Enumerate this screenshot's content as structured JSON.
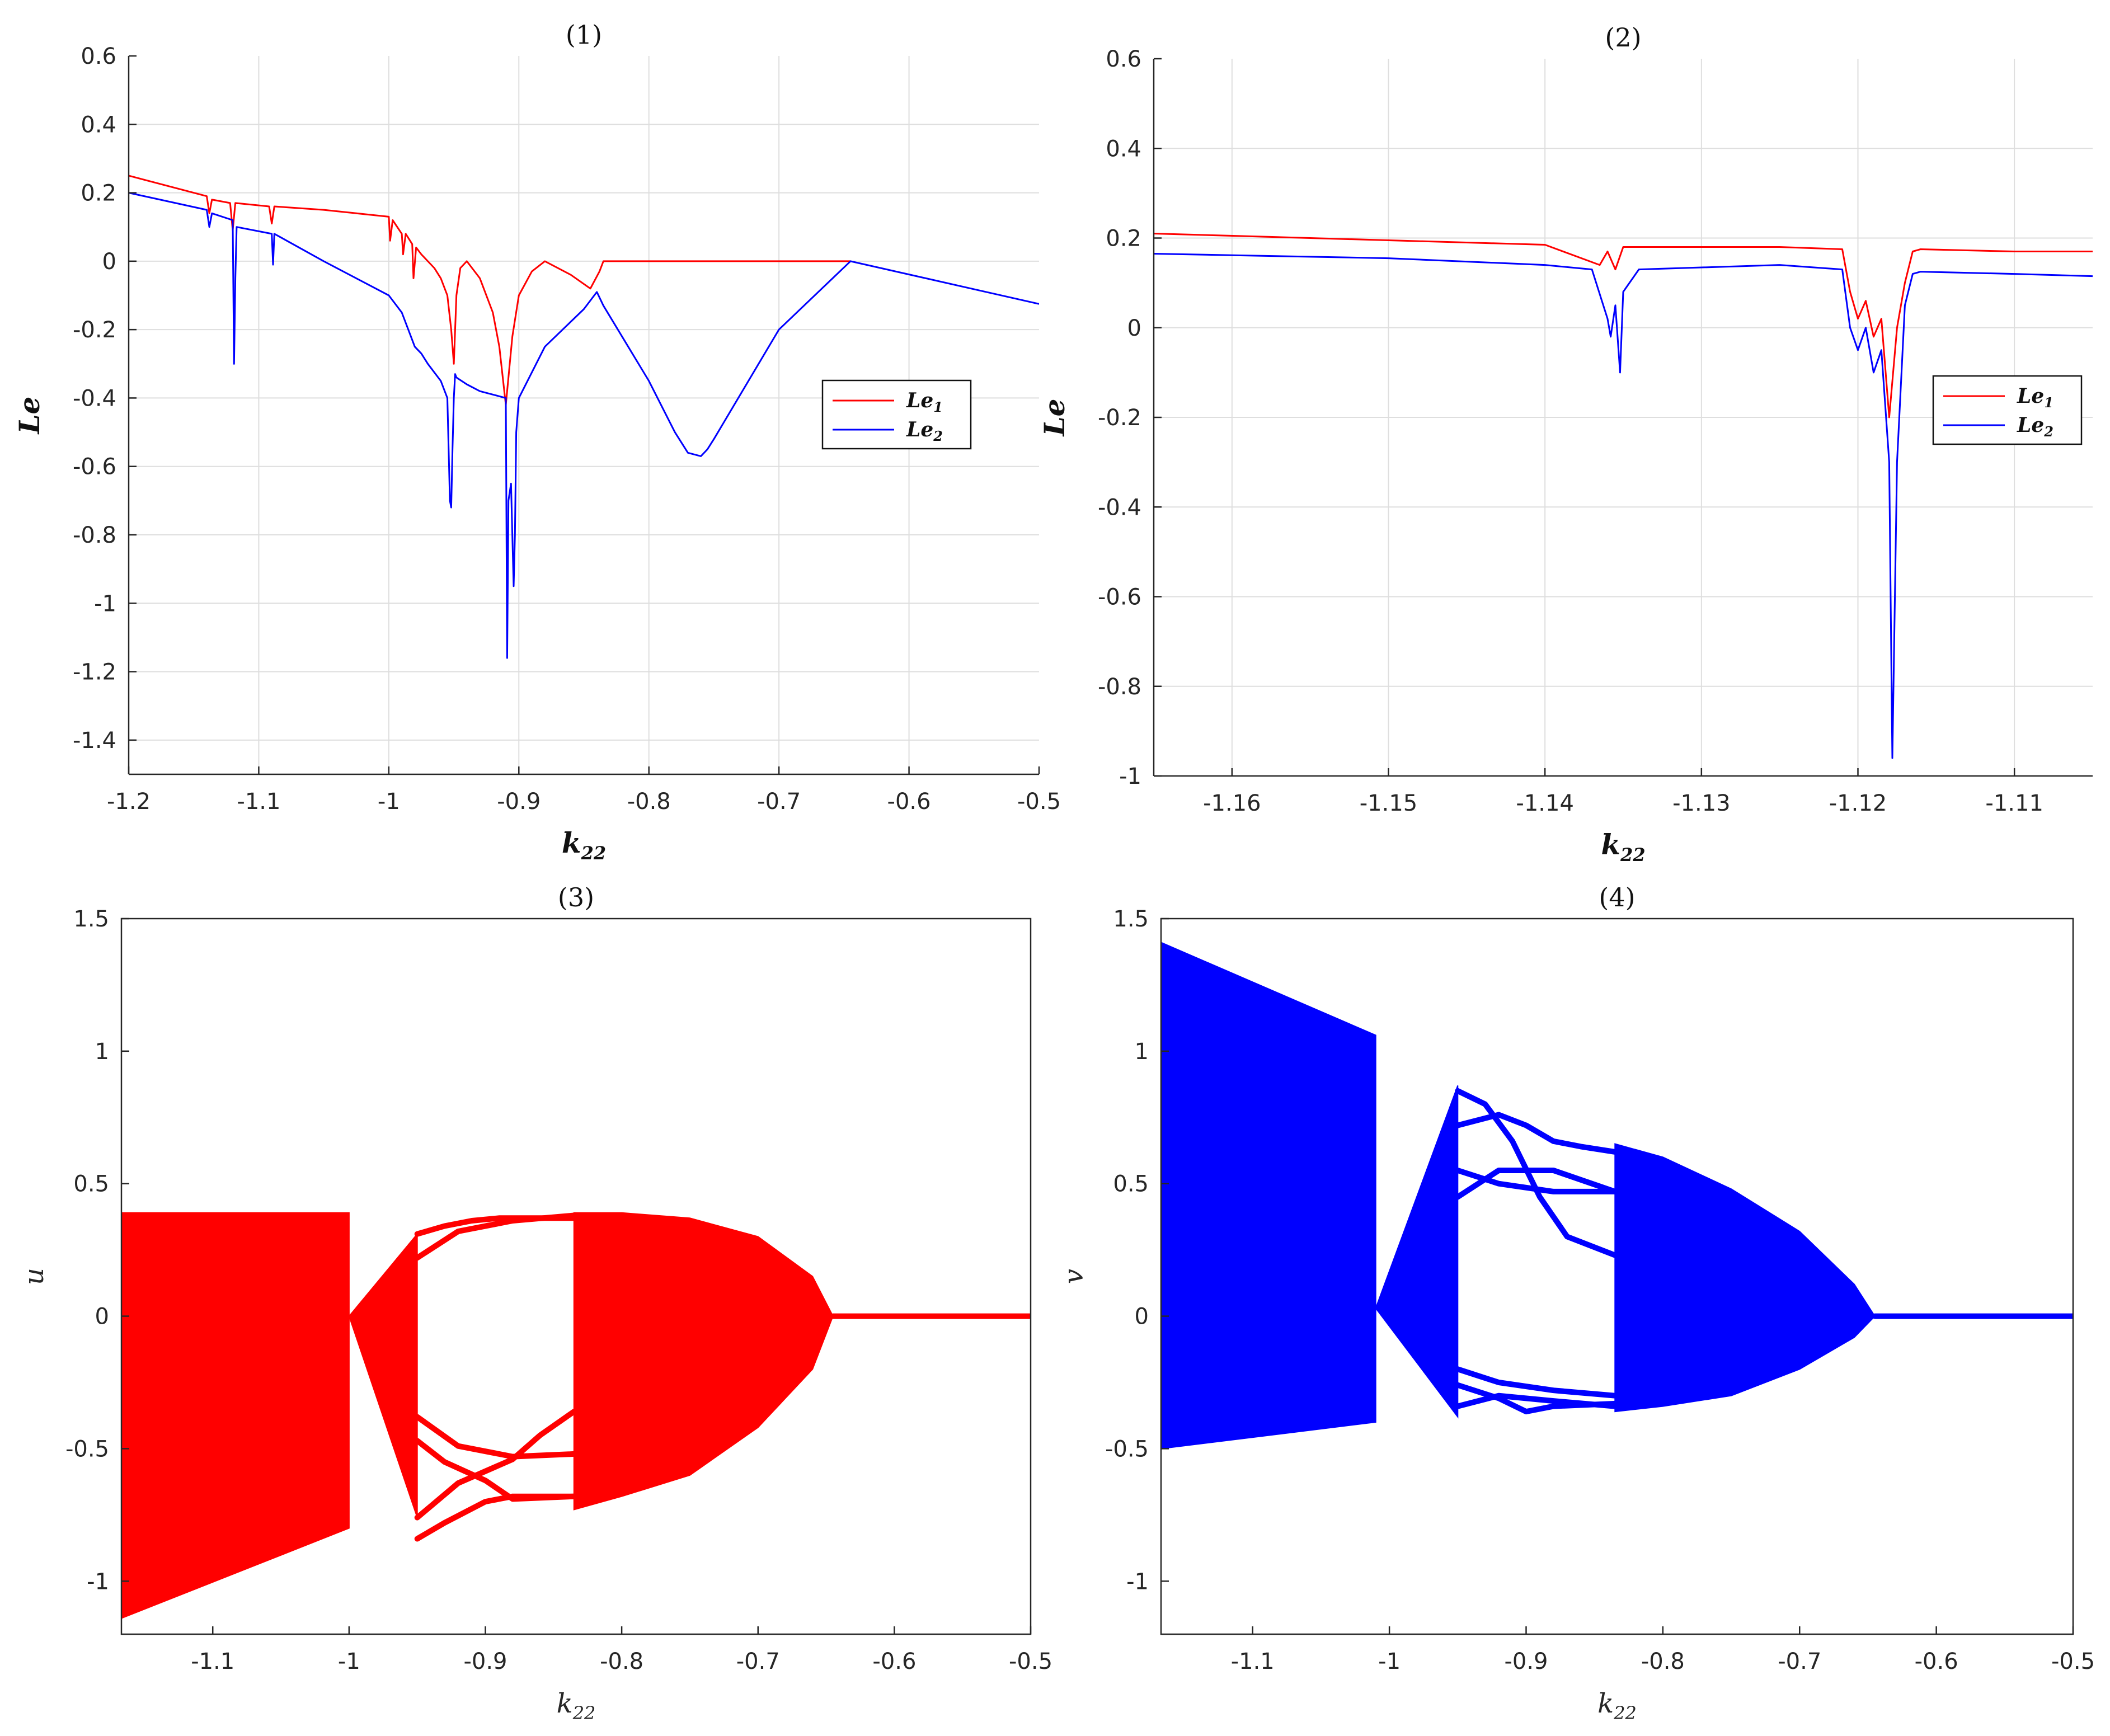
{
  "colors": {
    "red": "#ff0000",
    "blue": "#0000ff"
  },
  "chart_data": [
    {
      "type": "line",
      "title": "(1)",
      "xlabel_base": "k",
      "xlabel_sub": "22",
      "ylabel": "Le",
      "xlim": [
        -1.2,
        -0.5
      ],
      "ylim": [
        -1.5,
        0.6
      ],
      "xticks": [
        -1.2,
        -1.1,
        -1,
        -0.9,
        -0.8,
        -0.7,
        -0.6,
        -0.5
      ],
      "xtick_labels": [
        "-1.2",
        "-1.1",
        "-1",
        "-0.9",
        "-0.8",
        "-0.7",
        "-0.6",
        "-0.5"
      ],
      "yticks": [
        -1.4,
        -1.2,
        -1,
        -0.8,
        -0.6,
        -0.4,
        -0.2,
        0,
        0.2,
        0.4,
        0.6
      ],
      "ytick_labels": [
        "-1.4",
        "-1.2",
        "-1",
        "-0.8",
        "-0.6",
        "-0.4",
        "-0.2",
        "0",
        "0.2",
        "0.4",
        "0.6"
      ],
      "grid": true,
      "legend": "right",
      "series": [
        {
          "name_base": "Le",
          "name_sub": "1",
          "color": "red",
          "x": [
            -1.2,
            -1.14,
            -1.138,
            -1.136,
            -1.122,
            -1.12,
            -1.118,
            -1.092,
            -1.09,
            -1.088,
            -1.05,
            -1.0,
            -0.999,
            -0.997,
            -0.99,
            -0.989,
            -0.987,
            -0.982,
            -0.981,
            -0.979,
            -0.975,
            -0.97,
            -0.965,
            -0.96,
            -0.955,
            -0.952,
            -0.95,
            -0.948,
            -0.945,
            -0.94,
            -0.93,
            -0.92,
            -0.915,
            -0.91,
            -0.905,
            -0.9,
            -0.89,
            -0.88,
            -0.86,
            -0.845,
            -0.838,
            -0.835,
            -0.8,
            -0.75,
            -0.7,
            -0.645
          ],
          "y": [
            0.25,
            0.19,
            0.14,
            0.18,
            0.17,
            0.09,
            0.17,
            0.16,
            0.11,
            0.16,
            0.15,
            0.13,
            0.06,
            0.12,
            0.08,
            0.02,
            0.08,
            0.05,
            -0.05,
            0.04,
            0.02,
            0.0,
            -0.02,
            -0.05,
            -0.1,
            -0.2,
            -0.3,
            -0.1,
            -0.02,
            0.0,
            -0.05,
            -0.15,
            -0.25,
            -0.42,
            -0.22,
            -0.1,
            -0.03,
            0.0,
            -0.04,
            -0.08,
            -0.03,
            0.0,
            0.0,
            0.0,
            0.0,
            0.0
          ]
        },
        {
          "name_base": "Le",
          "name_sub": "2",
          "color": "blue",
          "x": [
            -1.2,
            -1.14,
            -1.138,
            -1.136,
            -1.12,
            -1.119,
            -1.118,
            -1.117,
            -1.09,
            -1.089,
            -1.088,
            -1.05,
            -1.0,
            -0.99,
            -0.985,
            -0.98,
            -0.975,
            -0.97,
            -0.96,
            -0.955,
            -0.953,
            -0.952,
            -0.951,
            -0.95,
            -0.949,
            -0.948,
            -0.94,
            -0.93,
            -0.91,
            -0.909,
            -0.908,
            -0.906,
            -0.904,
            -0.903,
            -0.902,
            -0.9,
            -0.88,
            -0.85,
            -0.84,
            -0.835,
            -0.8,
            -0.78,
            -0.77,
            -0.76,
            -0.755,
            -0.75,
            -0.7,
            -0.645,
            -0.5
          ],
          "y": [
            0.2,
            0.15,
            0.1,
            0.14,
            0.12,
            -0.3,
            -0.05,
            0.1,
            0.08,
            -0.01,
            0.08,
            0.0,
            -0.1,
            -0.15,
            -0.2,
            -0.25,
            -0.27,
            -0.3,
            -0.35,
            -0.4,
            -0.7,
            -0.72,
            -0.55,
            -0.4,
            -0.33,
            -0.34,
            -0.36,
            -0.38,
            -0.4,
            -1.16,
            -0.7,
            -0.65,
            -0.95,
            -0.8,
            -0.5,
            -0.4,
            -0.25,
            -0.14,
            -0.09,
            -0.13,
            -0.35,
            -0.5,
            -0.56,
            -0.57,
            -0.55,
            -0.52,
            -0.2,
            0.0,
            -0.125
          ]
        }
      ]
    },
    {
      "type": "line",
      "title": "(2)",
      "xlabel_base": "k",
      "xlabel_sub": "22",
      "ylabel": "Le",
      "xlim": [
        -1.165,
        -1.105
      ],
      "ylim": [
        -1.0,
        0.6
      ],
      "xticks": [
        -1.16,
        -1.15,
        -1.14,
        -1.13,
        -1.12,
        -1.11
      ],
      "xtick_labels": [
        "-1.16",
        "-1.15",
        "-1.14",
        "-1.13",
        "-1.12",
        "-1.11"
      ],
      "yticks": [
        -1,
        -0.8,
        -0.6,
        -0.4,
        -0.2,
        0,
        0.2,
        0.4,
        0.6
      ],
      "ytick_labels": [
        "-1",
        "-0.8",
        "-0.6",
        "-0.4",
        "-0.2",
        "0",
        "0.2",
        "0.4",
        "0.6"
      ],
      "grid": true,
      "legend": "right",
      "series": [
        {
          "name_base": "Le",
          "name_sub": "1",
          "color": "red",
          "x": [
            -1.165,
            -1.15,
            -1.14,
            -1.1365,
            -1.136,
            -1.1355,
            -1.135,
            -1.125,
            -1.121,
            -1.1205,
            -1.12,
            -1.1195,
            -1.119,
            -1.1185,
            -1.118,
            -1.1175,
            -1.117,
            -1.1165,
            -1.116,
            -1.11,
            -1.105
          ],
          "y": [
            0.21,
            0.195,
            0.185,
            0.14,
            0.17,
            0.13,
            0.18,
            0.18,
            0.175,
            0.08,
            0.02,
            0.06,
            -0.02,
            0.02,
            -0.2,
            0.0,
            0.1,
            0.17,
            0.175,
            0.17,
            0.17
          ]
        },
        {
          "name_base": "Le",
          "name_sub": "2",
          "color": "blue",
          "x": [
            -1.165,
            -1.15,
            -1.14,
            -1.137,
            -1.136,
            -1.1358,
            -1.1355,
            -1.1352,
            -1.135,
            -1.134,
            -1.125,
            -1.121,
            -1.1205,
            -1.12,
            -1.1195,
            -1.119,
            -1.1185,
            -1.118,
            -1.1178,
            -1.1175,
            -1.117,
            -1.1165,
            -1.116,
            -1.11,
            -1.105
          ],
          "y": [
            0.165,
            0.155,
            0.14,
            0.13,
            0.02,
            -0.02,
            0.05,
            -0.1,
            0.08,
            0.13,
            0.14,
            0.13,
            0.0,
            -0.05,
            0.0,
            -0.1,
            -0.05,
            -0.3,
            -0.96,
            -0.3,
            0.05,
            0.12,
            0.125,
            0.12,
            0.115
          ]
        }
      ]
    },
    {
      "type": "scatter",
      "title": "(3)",
      "xlabel_base": "k",
      "xlabel_sub": "22",
      "ylabel": "u",
      "color": "red",
      "xlim": [
        -1.167,
        -0.5
      ],
      "ylim": [
        -1.2,
        1.5
      ],
      "xticks": [
        -1.1,
        -1,
        -0.9,
        -0.8,
        -0.7,
        -0.6,
        -0.5
      ],
      "xtick_labels": [
        "-1.1",
        "-1",
        "-0.9",
        "-0.8",
        "-0.7",
        "-0.6",
        "-0.5"
      ],
      "yticks": [
        -1,
        -0.5,
        0,
        0.5,
        1,
        1.5
      ],
      "ytick_labels": [
        "-1",
        "-0.5",
        "0",
        "0.5",
        "1",
        "1.5"
      ],
      "grid": false,
      "regions": [
        {
          "x": [
            -1.167,
            -1.0
          ],
          "upper": [
            0.39,
            0.39
          ],
          "lower": [
            -1.14,
            -0.8
          ]
        },
        {
          "x": [
            -1.0,
            -0.95
          ],
          "upper": [
            0.0,
            0.31
          ],
          "lower": [
            0.0,
            -0.76
          ]
        },
        {
          "x": [
            -0.835,
            -0.8,
            -0.75,
            -0.7,
            -0.66,
            -0.645
          ],
          "upper": [
            0.39,
            0.39,
            0.37,
            0.3,
            0.15,
            0.0
          ],
          "lower": [
            -0.73,
            -0.68,
            -0.6,
            -0.42,
            -0.2,
            0.0
          ]
        }
      ],
      "branches": [
        {
          "x": [
            -0.95,
            -0.93,
            -0.91,
            -0.89,
            -0.87,
            -0.835
          ],
          "y": [
            0.31,
            0.34,
            0.36,
            0.37,
            0.37,
            0.37
          ]
        },
        {
          "x": [
            -0.95,
            -0.92,
            -0.88,
            -0.835
          ],
          "y": [
            0.22,
            0.32,
            0.36,
            0.38
          ]
        },
        {
          "x": [
            -0.95,
            -0.92,
            -0.88,
            -0.835
          ],
          "y": [
            -0.38,
            -0.49,
            -0.53,
            -0.52
          ]
        },
        {
          "x": [
            -0.95,
            -0.92,
            -0.88,
            -0.86,
            -0.835
          ],
          "y": [
            -0.76,
            -0.63,
            -0.54,
            -0.45,
            -0.36
          ]
        },
        {
          "x": [
            -0.95,
            -0.93,
            -0.9,
            -0.88,
            -0.835
          ],
          "y": [
            -0.47,
            -0.55,
            -0.62,
            -0.69,
            -0.68
          ]
        },
        {
          "x": [
            -0.95,
            -0.93,
            -0.9,
            -0.88,
            -0.835
          ],
          "y": [
            -0.84,
            -0.78,
            -0.7,
            -0.68,
            -0.68
          ]
        },
        {
          "x": [
            -0.645,
            -0.5
          ],
          "y": [
            0.0,
            0.0
          ]
        }
      ]
    },
    {
      "type": "scatter",
      "title": "(4)",
      "xlabel_base": "k",
      "xlabel_sub": "22",
      "ylabel": "v",
      "color": "blue",
      "xlim": [
        -1.167,
        -0.5
      ],
      "ylim": [
        -1.2,
        1.5
      ],
      "xticks": [
        -1.1,
        -1,
        -0.9,
        -0.8,
        -0.7,
        -0.6,
        -0.5
      ],
      "xtick_labels": [
        "-1.1",
        "-1",
        "-0.9",
        "-0.8",
        "-0.7",
        "-0.6",
        "-0.5"
      ],
      "yticks": [
        -1,
        -0.5,
        0,
        0.5,
        1,
        1.5
      ],
      "ytick_labels": [
        "-1",
        "-0.5",
        "0",
        "0.5",
        "1",
        "1.5"
      ],
      "grid": false,
      "regions": [
        {
          "x": [
            -1.167,
            -1.01
          ],
          "upper": [
            1.41,
            1.06
          ],
          "lower": [
            -0.5,
            -0.4
          ]
        },
        {
          "x": [
            -1.01,
            -0.95
          ],
          "upper": [
            0.03,
            0.87
          ],
          "lower": [
            0.03,
            -0.38
          ]
        },
        {
          "x": [
            -0.835,
            -0.8,
            -0.75,
            -0.7,
            -0.66,
            -0.645
          ],
          "upper": [
            0.65,
            0.6,
            0.48,
            0.32,
            0.12,
            0.0
          ],
          "lower": [
            -0.36,
            -0.34,
            -0.3,
            -0.2,
            -0.08,
            0.0
          ]
        }
      ],
      "branches": [
        {
          "x": [
            -0.95,
            -0.93,
            -0.91,
            -0.89,
            -0.87,
            -0.835
          ],
          "y": [
            0.85,
            0.8,
            0.66,
            0.45,
            0.3,
            0.23
          ]
        },
        {
          "x": [
            -0.95,
            -0.92,
            -0.9,
            -0.88
          ],
          "y": [
            0.72,
            0.76,
            0.72,
            0.66
          ]
        },
        {
          "x": [
            -0.88,
            -0.86,
            -0.835
          ],
          "y": [
            0.66,
            0.64,
            0.62
          ]
        },
        {
          "x": [
            -0.95,
            -0.92,
            -0.88,
            -0.835
          ],
          "y": [
            0.55,
            0.5,
            0.47,
            0.47
          ]
        },
        {
          "x": [
            -0.95,
            -0.92,
            -0.88,
            -0.835
          ],
          "y": [
            0.45,
            0.55,
            0.55,
            0.47
          ]
        },
        {
          "x": [
            -0.95,
            -0.92,
            -0.88,
            -0.835
          ],
          "y": [
            -0.2,
            -0.25,
            -0.28,
            -0.3
          ]
        },
        {
          "x": [
            -0.95,
            -0.92,
            -0.88,
            -0.835
          ],
          "y": [
            -0.34,
            -0.3,
            -0.32,
            -0.34
          ]
        },
        {
          "x": [
            -0.95,
            -0.92,
            -0.9,
            -0.88,
            -0.835
          ],
          "y": [
            -0.26,
            -0.31,
            -0.36,
            -0.34,
            -0.33
          ]
        },
        {
          "x": [
            -0.645,
            -0.5
          ],
          "y": [
            0.0,
            0.0
          ]
        }
      ]
    }
  ]
}
